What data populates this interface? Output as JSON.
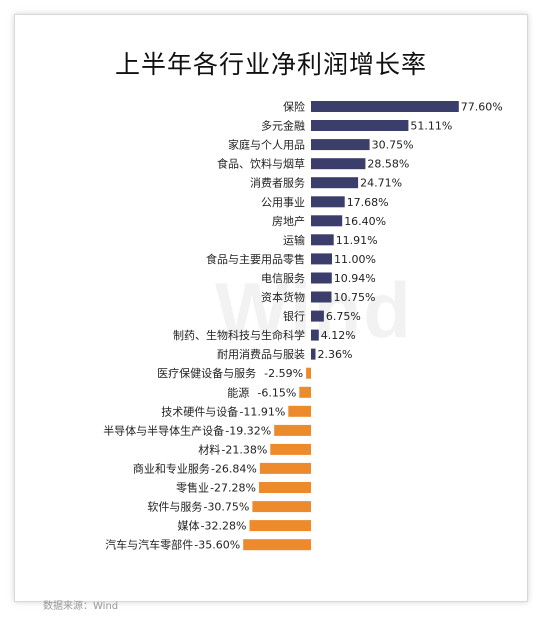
{
  "chart_data": {
    "type": "bar",
    "orientation": "horizontal",
    "title": "上半年各行业净利润增长率",
    "categories": [
      "保险",
      "多元金融",
      "家庭与个人用品",
      "食品、饮料与烟草",
      "消费者服务",
      "公用事业",
      "房地产",
      "运输",
      "食品与主要用品零售",
      "电信服务",
      "资本货物",
      "银行",
      "制药、生物科技与生命科学",
      "耐用消费品与服装",
      "医疗保健设备与服务",
      "能源",
      "技术硬件与设备",
      "半导体与半导体生产设备",
      "材料",
      "商业和专业服务",
      "零售业",
      "软件与服务",
      "媒体",
      "汽车与汽车零部件"
    ],
    "values": [
      77.6,
      51.11,
      30.75,
      28.58,
      24.71,
      17.68,
      16.4,
      11.91,
      11.0,
      10.94,
      10.75,
      6.75,
      4.12,
      2.36,
      -2.59,
      -6.15,
      -11.91,
      -19.32,
      -21.38,
      -26.84,
      -27.28,
      -30.75,
      -32.28,
      -35.6
    ],
    "value_labels": [
      "77.60%",
      "51.11%",
      "30.75%",
      "28.58%",
      "24.71%",
      "17.68%",
      "16.40%",
      "11.91%",
      "11.00%",
      "10.94%",
      "10.75%",
      "6.75%",
      "4.12%",
      "2.36%",
      "-2.59%",
      "-6.15%",
      "-11.91%",
      "-19.32%",
      "-21.38%",
      "-26.84%",
      "-27.28%",
      "-30.75%",
      "-32.28%",
      "-35.60%"
    ],
    "unit": "%",
    "positive_color": "#3b3d6b",
    "negative_color": "#ec8a2c",
    "grid": false,
    "legend": "none"
  },
  "watermark": "Wind",
  "source": "数据来源：Wind"
}
